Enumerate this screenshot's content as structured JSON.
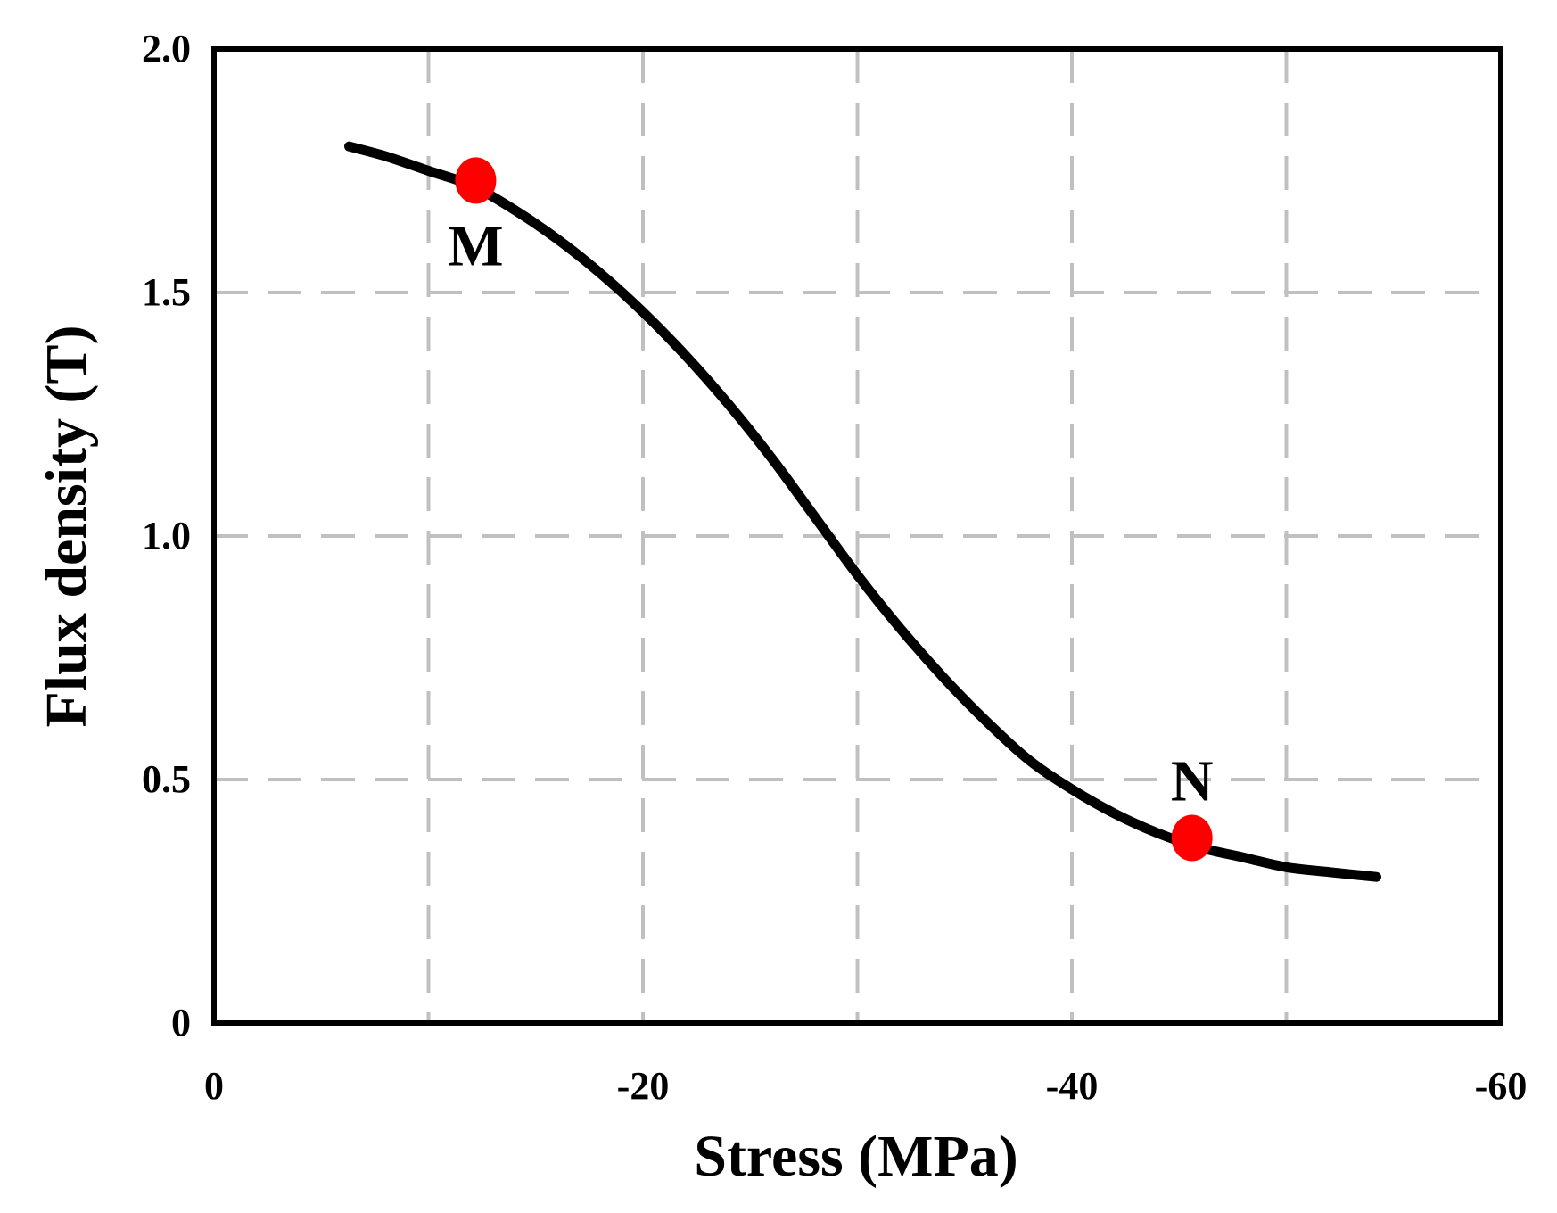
{
  "chart_data": {
    "type": "line",
    "title": "",
    "xlabel": "Stress  (MPa)",
    "ylabel": "Flux density (T)",
    "xlim": [
      0,
      -60
    ],
    "ylim": [
      0,
      2.0
    ],
    "x_ticks": [
      0,
      -20,
      -40,
      -60
    ],
    "x_tick_labels": [
      "0",
      "-20",
      "-40",
      "-60"
    ],
    "y_ticks": [
      0,
      0.5,
      1.0,
      1.5,
      2.0
    ],
    "y_tick_labels": [
      "0",
      "0.5",
      "1.0",
      "1.5",
      "2.0"
    ],
    "x_gridlines": [
      -10,
      -20,
      -30,
      -40,
      -50
    ],
    "y_gridlines": [
      0.5,
      1.0,
      1.5
    ],
    "grid": true,
    "series": [
      {
        "name": "B-stress curve",
        "x": [
          -6.3,
          -8,
          -10,
          -12,
          -14,
          -16,
          -18,
          -20,
          -22,
          -24,
          -26,
          -28,
          -30,
          -32,
          -34,
          -36,
          -38,
          -40,
          -42,
          -44,
          -46,
          -48,
          -50,
          -52,
          -54.2
        ],
        "values": [
          1.8,
          1.78,
          1.75,
          1.72,
          1.67,
          1.61,
          1.54,
          1.46,
          1.37,
          1.27,
          1.16,
          1.04,
          0.92,
          0.81,
          0.71,
          0.62,
          0.54,
          0.48,
          0.43,
          0.39,
          0.36,
          0.34,
          0.32,
          0.31,
          0.3
        ]
      }
    ],
    "points": [
      {
        "label": "M",
        "x": -12.2,
        "y": 1.73
      },
      {
        "label": "N",
        "x": -45.6,
        "y": 0.38
      }
    ],
    "colors": {
      "curve": "#000000",
      "points": "#ff0000",
      "grid": "#c0c0c0",
      "frame": "#000000"
    }
  }
}
